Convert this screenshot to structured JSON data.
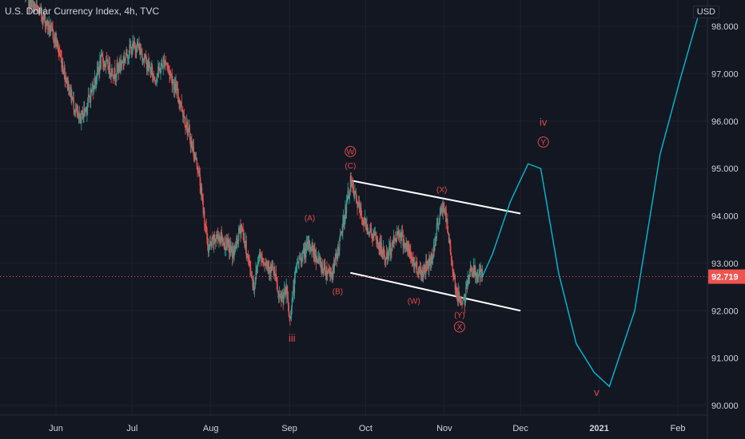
{
  "header": {
    "title": "U.S. Dollar Currency Index, 4h, TVC",
    "currency": "USD"
  },
  "colors": {
    "background": "#131722",
    "up": "#26a69a",
    "down": "#ef5350",
    "projection": "#00bcd4",
    "channel": "#ffffff",
    "label": "#e04a4a",
    "grid": "#1e222d"
  },
  "chart_data": {
    "type": "candlestick",
    "ylim": [
      89.8,
      98.5
    ],
    "y_ticks": [
      {
        "value": 90,
        "label": "90.000"
      },
      {
        "value": 91,
        "label": "91.000"
      },
      {
        "value": 92,
        "label": "92.000"
      },
      {
        "value": 93,
        "label": "93.000"
      },
      {
        "value": 94,
        "label": "94.000"
      },
      {
        "value": 95,
        "label": "95.000"
      },
      {
        "value": 96,
        "label": "96.000"
      },
      {
        "value": 97,
        "label": "97.000"
      },
      {
        "value": 98,
        "label": "98.000"
      }
    ],
    "x_ticks": [
      {
        "date": "2020-06-01",
        "label": "Jun"
      },
      {
        "date": "2020-07-01",
        "label": "Jul"
      },
      {
        "date": "2020-08-01",
        "label": "Aug"
      },
      {
        "date": "2020-09-01",
        "label": "Sep"
      },
      {
        "date": "2020-10-01",
        "label": "Oct"
      },
      {
        "date": "2020-11-01",
        "label": "Nov"
      },
      {
        "date": "2020-12-01",
        "label": "Dec"
      },
      {
        "date": "2021-01-01",
        "label": "2021"
      },
      {
        "date": "2021-02-01",
        "label": "Feb"
      }
    ],
    "last_price": {
      "value": 92.719,
      "label": "92.719"
    },
    "price_path": [
      [
        "2020-05-20",
        98.6
      ],
      [
        "2020-05-27",
        98.2
      ],
      [
        "2020-06-01",
        97.7
      ],
      [
        "2020-06-05",
        96.9
      ],
      [
        "2020-06-10",
        96.0
      ],
      [
        "2020-06-13",
        96.3
      ],
      [
        "2020-06-19",
        97.3
      ],
      [
        "2020-06-24",
        97.0
      ],
      [
        "2020-06-30",
        97.5
      ],
      [
        "2020-07-03",
        97.6
      ],
      [
        "2020-07-10",
        96.9
      ],
      [
        "2020-07-14",
        97.3
      ],
      [
        "2020-07-20",
        96.4
      ],
      [
        "2020-07-27",
        95.0
      ],
      [
        "2020-07-31",
        93.3
      ],
      [
        "2020-08-04",
        93.6
      ],
      [
        "2020-08-10",
        93.2
      ],
      [
        "2020-08-13",
        93.8
      ],
      [
        "2020-08-18",
        92.5
      ],
      [
        "2020-08-20",
        93.2
      ],
      [
        "2020-08-26",
        92.8
      ],
      [
        "2020-08-28",
        92.2
      ],
      [
        "2020-08-31",
        92.4
      ],
      [
        "2020-09-01",
        91.8
      ],
      [
        "2020-09-04",
        93.0
      ],
      [
        "2020-09-09",
        93.4
      ],
      [
        "2020-09-14",
        92.9
      ],
      [
        "2020-09-18",
        92.8
      ],
      [
        "2020-09-21",
        93.5
      ],
      [
        "2020-09-25",
        94.7
      ],
      [
        "2020-09-30",
        93.9
      ],
      [
        "2020-10-05",
        93.5
      ],
      [
        "2020-10-09",
        93.1
      ],
      [
        "2020-10-14",
        93.7
      ],
      [
        "2020-10-20",
        93.0
      ],
      [
        "2020-10-23",
        92.8
      ],
      [
        "2020-10-27",
        93.1
      ],
      [
        "2020-10-30",
        94.0
      ],
      [
        "2020-11-01",
        94.2
      ],
      [
        "2020-11-03",
        93.4
      ],
      [
        "2020-11-06",
        92.3
      ],
      [
        "2020-11-09",
        92.2
      ],
      [
        "2020-11-11",
        92.9
      ],
      [
        "2020-11-13",
        92.8
      ],
      [
        "2020-11-16",
        92.72
      ]
    ],
    "projection": [
      [
        "2020-11-16",
        92.72
      ],
      [
        "2020-11-20",
        93.2
      ],
      [
        "2020-11-27",
        94.3
      ],
      [
        "2020-12-04",
        95.1
      ],
      [
        "2020-12-09",
        95.0
      ],
      [
        "2020-12-16",
        92.8
      ],
      [
        "2020-12-23",
        91.3
      ],
      [
        "2020-12-30",
        90.7
      ],
      [
        "2021-01-05",
        90.4
      ],
      [
        "2021-01-15",
        92.0
      ],
      [
        "2021-01-25",
        95.3
      ],
      [
        "2021-02-02",
        96.9
      ],
      [
        "2021-02-10",
        98.4
      ]
    ],
    "channel_upper": [
      [
        "2020-09-25",
        94.75
      ],
      [
        "2020-12-01",
        94.05
      ]
    ],
    "channel_lower": [
      [
        "2020-09-25",
        92.8
      ],
      [
        "2020-12-01",
        92.0
      ]
    ],
    "wave_labels": [
      {
        "text": "W",
        "circled": true,
        "date": "2020-09-25",
        "value": 95.3
      },
      {
        "text": "(C)",
        "date": "2020-09-25",
        "value": 95.0
      },
      {
        "text": "(A)",
        "date": "2020-09-09",
        "value": 93.9
      },
      {
        "text": "(B)",
        "date": "2020-09-20",
        "value": 92.35
      },
      {
        "text": "(X)",
        "date": "2020-10-31",
        "value": 94.5
      },
      {
        "text": "(W)",
        "date": "2020-10-20",
        "value": 92.15
      },
      {
        "text": "(Y)",
        "date": "2020-11-07",
        "value": 91.85
      },
      {
        "text": "X",
        "circled": true,
        "date": "2020-11-07",
        "value": 91.6
      },
      {
        "text": "iv",
        "date": "2020-12-10",
        "value": 95.9,
        "big": true
      },
      {
        "text": "Y",
        "circled": true,
        "date": "2020-12-10",
        "value": 95.5
      },
      {
        "text": "iii",
        "date": "2020-09-02",
        "value": 91.35,
        "big": true
      },
      {
        "text": "v",
        "date": "2020-12-31",
        "value": 90.2,
        "big": true
      }
    ]
  }
}
